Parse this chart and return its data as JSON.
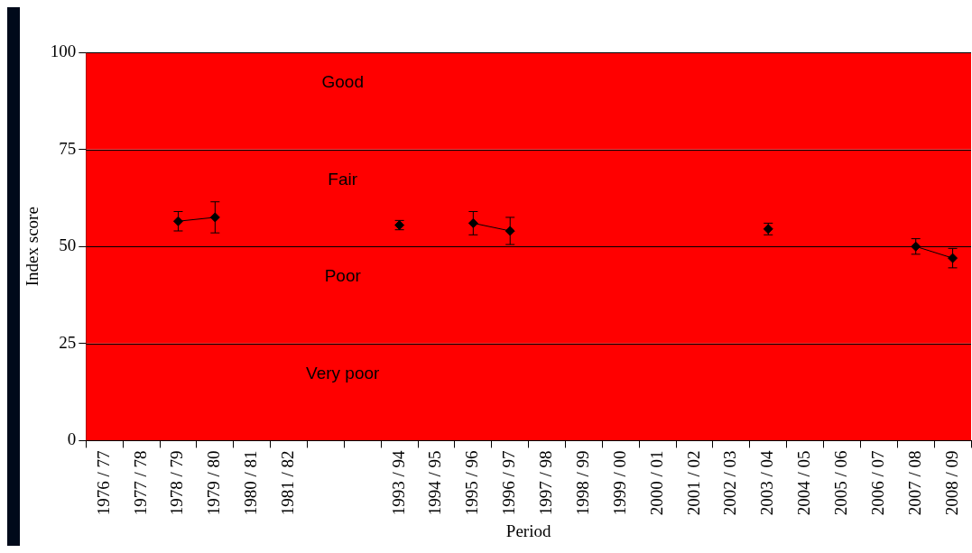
{
  "chart_data": {
    "type": "line",
    "xlabel": "Period",
    "ylabel": "Index score",
    "categories": [
      "1976 / 77",
      "1977 / 78",
      "1978 / 79",
      "1979 / 80",
      "1980 / 81",
      "1981 / 82",
      null,
      null,
      "1993 / 94",
      "1994 / 95",
      "1995 / 96",
      "1996 / 97",
      "1997 / 98",
      "1998 / 99",
      "1999 / 00",
      "2000 / 01",
      "2001 / 02",
      "2002 / 03",
      "2003 / 04",
      "2004 / 05",
      "2005 / 06",
      "2006 / 07",
      "2007 / 08",
      "2008 / 09"
    ],
    "series": [
      {
        "color": "#000000",
        "values": [
          null,
          null,
          56.5,
          57.5,
          null,
          null,
          null,
          null,
          55.5,
          null,
          56,
          54,
          null,
          null,
          null,
          null,
          null,
          null,
          54.5,
          null,
          null,
          null,
          50,
          47
        ],
        "errors": [
          null,
          null,
          2.5,
          4,
          null,
          null,
          null,
          null,
          1.2,
          null,
          3,
          3.5,
          null,
          null,
          null,
          null,
          null,
          null,
          1.5,
          null,
          null,
          null,
          2,
          2.5
        ]
      }
    ],
    "ylim": [
      0,
      100
    ],
    "yticks": [
      0,
      25,
      50,
      75,
      100
    ],
    "grid": "y",
    "marker": "diamond",
    "line_style": "solid",
    "legend": false,
    "bands": [
      {
        "axis": "y",
        "from": 0,
        "to": 25,
        "label": "Very poor",
        "color": "#ff0000"
      },
      {
        "axis": "y",
        "from": 25,
        "to": 50,
        "label": "Poor",
        "color": "#ff0000"
      },
      {
        "axis": "y",
        "from": 50,
        "to": 75,
        "label": "Fair",
        "color": "#ff0000"
      },
      {
        "axis": "y",
        "from": 75,
        "to": 100,
        "label": "Good",
        "color": "#ff0000"
      }
    ]
  }
}
